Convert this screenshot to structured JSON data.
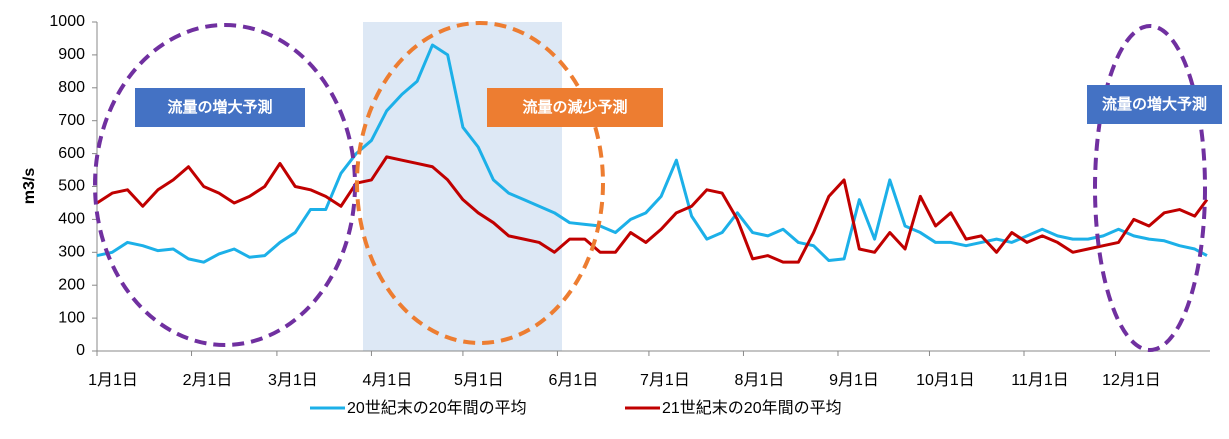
{
  "chart_data": {
    "type": "line",
    "y_label": "m3/s",
    "x": [
      0,
      5,
      10,
      15,
      20,
      25,
      30,
      35,
      40,
      45,
      50,
      55,
      60,
      65,
      70,
      75,
      80,
      85,
      90,
      95,
      100,
      105,
      110,
      115,
      120,
      125,
      130,
      135,
      140,
      145,
      150,
      155,
      160,
      165,
      170,
      175,
      180,
      185,
      190,
      195,
      200,
      205,
      210,
      215,
      220,
      225,
      230,
      235,
      240,
      245,
      250,
      255,
      260,
      265,
      270,
      275,
      280,
      285,
      290,
      295,
      300,
      305,
      310,
      315,
      320,
      325,
      330,
      335,
      340,
      345,
      350,
      355,
      360,
      364
    ],
    "xlim": [
      0,
      365
    ],
    "xticks": [
      {
        "value": 0,
        "label": "1月1日"
      },
      {
        "value": 31,
        "label": "2月1日"
      },
      {
        "value": 59,
        "label": "3月1日"
      },
      {
        "value": 90,
        "label": "4月1日"
      },
      {
        "value": 120,
        "label": "5月1日"
      },
      {
        "value": 151,
        "label": "6月1日"
      },
      {
        "value": 181,
        "label": "7月1日"
      },
      {
        "value": 212,
        "label": "8月1日"
      },
      {
        "value": 243,
        "label": "9月1日"
      },
      {
        "value": 273,
        "label": "10月1日"
      },
      {
        "value": 304,
        "label": "11月1日"
      },
      {
        "value": 334,
        "label": "12月1日"
      }
    ],
    "ylim": [
      0,
      1000
    ],
    "yticks": [
      0,
      100,
      200,
      300,
      400,
      500,
      600,
      700,
      800,
      900,
      1000
    ],
    "series": [
      {
        "name": "20世紀末の20年間の平均",
        "color": "#1cb0e8",
        "values": [
          290,
          300,
          330,
          320,
          305,
          310,
          280,
          270,
          295,
          310,
          285,
          290,
          330,
          360,
          430,
          430,
          540,
          600,
          640,
          730,
          780,
          820,
          930,
          900,
          680,
          620,
          520,
          480,
          460,
          440,
          420,
          390,
          385,
          380,
          360,
          400,
          420,
          470,
          580,
          410,
          340,
          360,
          420,
          360,
          350,
          370,
          330,
          320,
          275,
          280,
          460,
          340,
          520,
          380,
          360,
          330,
          330,
          320,
          330,
          340,
          330,
          350,
          370,
          350,
          340,
          340,
          350,
          370,
          350,
          340,
          335,
          320,
          310,
          290
        ]
      },
      {
        "name": "21世紀末の20年間の平均",
        "color": "#c00000",
        "values": [
          450,
          480,
          490,
          440,
          490,
          520,
          560,
          500,
          480,
          450,
          470,
          500,
          570,
          500,
          490,
          470,
          440,
          510,
          520,
          590,
          580,
          570,
          560,
          520,
          460,
          420,
          390,
          350,
          340,
          330,
          300,
          340,
          340,
          300,
          300,
          360,
          330,
          370,
          420,
          440,
          490,
          480,
          400,
          280,
          290,
          270,
          270,
          360,
          470,
          520,
          310,
          300,
          360,
          310,
          470,
          380,
          420,
          340,
          350,
          300,
          360,
          330,
          350,
          330,
          300,
          310,
          320,
          330,
          400,
          380,
          420,
          430,
          410,
          460
        ]
      }
    ],
    "annotations": [
      "流量の増大予測",
      "流量の減少予測",
      "流量の増大予測"
    ]
  }
}
